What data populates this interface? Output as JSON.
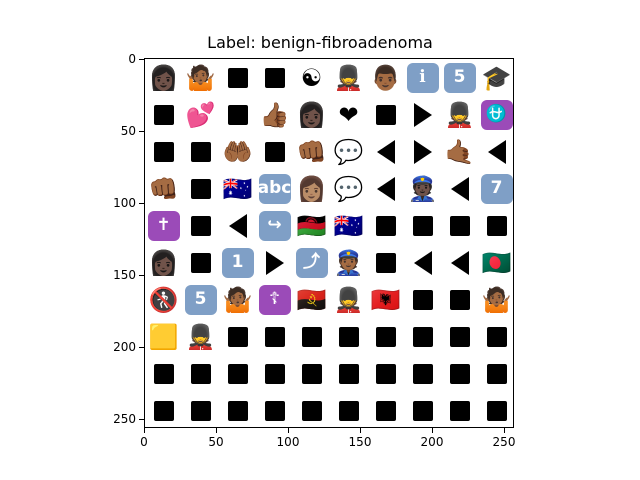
{
  "title": "Label: benign-fibroadenoma",
  "x_ticks": [
    "0",
    "50",
    "100",
    "150",
    "200",
    "250"
  ],
  "y_ticks": [
    "0",
    "50",
    "100",
    "150",
    "200",
    "250"
  ],
  "grid_rows": [
    [
      "👩🏿",
      "🤷🏾",
      "■",
      "■",
      "☯",
      "💂",
      "👨🏾",
      "ℹ",
      "5",
      "🎓"
    ],
    [
      "■",
      "💕",
      "■",
      "👍🏾",
      "👩🏿",
      "❤",
      "■",
      "▶",
      "💂",
      "⛎"
    ],
    [
      "■",
      "■",
      "🤲🏾",
      "■",
      "👊🏾",
      "💬",
      "◀",
      "▶",
      "🤙🏾",
      "◀"
    ],
    [
      "👊🏾",
      "■",
      "🇦🇺",
      "abc",
      "👩🏽",
      "💬",
      "◀",
      "👮🏿",
      "◀",
      "7"
    ],
    [
      "✝",
      "■",
      "◀",
      "↪",
      "🇲🇼",
      "🇦🇺",
      "■",
      "■",
      "■",
      "■"
    ],
    [
      "👩🏿",
      "■",
      "1",
      "▶",
      "⤴",
      "👮🏾",
      "■",
      "◀",
      "◀",
      "🇧🇩"
    ],
    [
      "🚷",
      "5",
      "🤷🏾",
      "☦",
      "🇦🇴",
      "💂",
      "🇦🇱",
      "■",
      "■",
      "🤷🏾"
    ],
    [
      "🟨",
      "💂",
      "■",
      "■",
      "■",
      "■",
      "■",
      "■",
      "■",
      "■"
    ],
    [
      "■",
      "■",
      "■",
      "■",
      "■",
      "■",
      "■",
      "■",
      "■",
      "■"
    ],
    [
      "■",
      "■",
      "■",
      "■",
      "■",
      "■",
      "■",
      "■",
      "■",
      "■"
    ]
  ]
}
